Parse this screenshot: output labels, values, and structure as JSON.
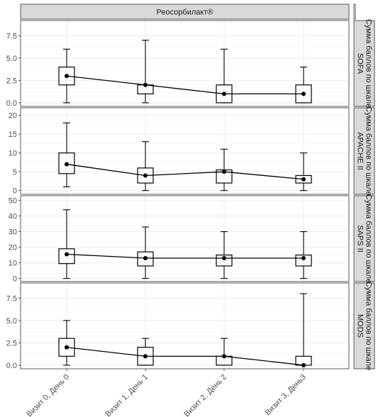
{
  "chart_data": {
    "type": "boxplot",
    "facet_title": "Реосорбилакт®",
    "categories": [
      "Визит 0, День 0",
      "Визит 1, День 1",
      "Визит 2, День 2",
      "Визит 3, День3"
    ],
    "panels": [
      {
        "label_line1": "Сумма баллов по шкале",
        "label_line2": "SOFA",
        "ylim": [
          -0.4,
          9.2
        ],
        "yticks": [
          "0.0",
          "2.5",
          "5.0",
          "7.5"
        ],
        "ytick_values": [
          0,
          2.5,
          5,
          7.5
        ],
        "stats": [
          {
            "min": 0,
            "q1": 2,
            "median": 3,
            "q3": 4,
            "max": 6
          },
          {
            "min": 0,
            "q1": 1,
            "median": 2,
            "q3": 2,
            "max": 7
          },
          {
            "min": 0,
            "q1": 0,
            "median": 1,
            "q3": 2,
            "max": 6
          },
          {
            "min": 0,
            "q1": 0,
            "median": 1,
            "q3": 2,
            "max": 4
          }
        ]
      },
      {
        "label_line1": "Сумма баллов по шкале",
        "label_line2": "APACHE II",
        "ylim": [
          -1,
          22
        ],
        "yticks": [
          "0",
          "5",
          "10",
          "15",
          "20"
        ],
        "ytick_values": [
          0,
          5,
          10,
          15,
          20
        ],
        "stats": [
          {
            "min": 1,
            "q1": 4.5,
            "median": 7,
            "q3": 10,
            "max": 18
          },
          {
            "min": 0,
            "q1": 2,
            "median": 4,
            "q3": 6,
            "max": 13
          },
          {
            "min": 0,
            "q1": 2,
            "median": 5,
            "q3": 5.5,
            "max": 11
          },
          {
            "min": 0,
            "q1": 2,
            "median": 3,
            "q3": 4,
            "max": 10
          }
        ]
      },
      {
        "label_line1": "Сумма баллов по шкале",
        "label_line2": "SAPS II",
        "ylim": [
          -2,
          53
        ],
        "yticks": [
          "0",
          "10",
          "20",
          "30",
          "40",
          "50"
        ],
        "ytick_values": [
          0,
          10,
          20,
          30,
          40,
          50
        ],
        "stats": [
          {
            "min": 0,
            "q1": 9.5,
            "median": 15.5,
            "q3": 19,
            "max": 44
          },
          {
            "min": 0,
            "q1": 8,
            "median": 13,
            "q3": 17,
            "max": 33
          },
          {
            "min": 0,
            "q1": 8,
            "median": 13,
            "q3": 15,
            "max": 30
          },
          {
            "min": 0,
            "q1": 8,
            "median": 13,
            "q3": 15,
            "max": 30
          }
        ]
      },
      {
        "label_line1": "Сумма баллов по шкале",
        "label_line2": "MODS",
        "ylim": [
          -0.4,
          9.2
        ],
        "yticks": [
          "0.0",
          "2.5",
          "5.0",
          "7.5"
        ],
        "ytick_values": [
          0,
          2.5,
          5,
          7.5
        ],
        "stats": [
          {
            "min": 0,
            "q1": 1,
            "median": 2,
            "q3": 3,
            "max": 5
          },
          {
            "min": 0,
            "q1": 0,
            "median": 1,
            "q3": 2,
            "max": 3
          },
          {
            "min": 0,
            "q1": 0,
            "median": 1,
            "q3": 1,
            "max": 3
          },
          {
            "min": 0,
            "q1": 0,
            "median": 0,
            "q3": 1,
            "max": 8
          }
        ]
      }
    ],
    "grid": true,
    "colors": {
      "strip_fill": "#d9d9d9",
      "panel_border": "#333333",
      "grid": "#ebebeb",
      "line": "#000000"
    }
  }
}
